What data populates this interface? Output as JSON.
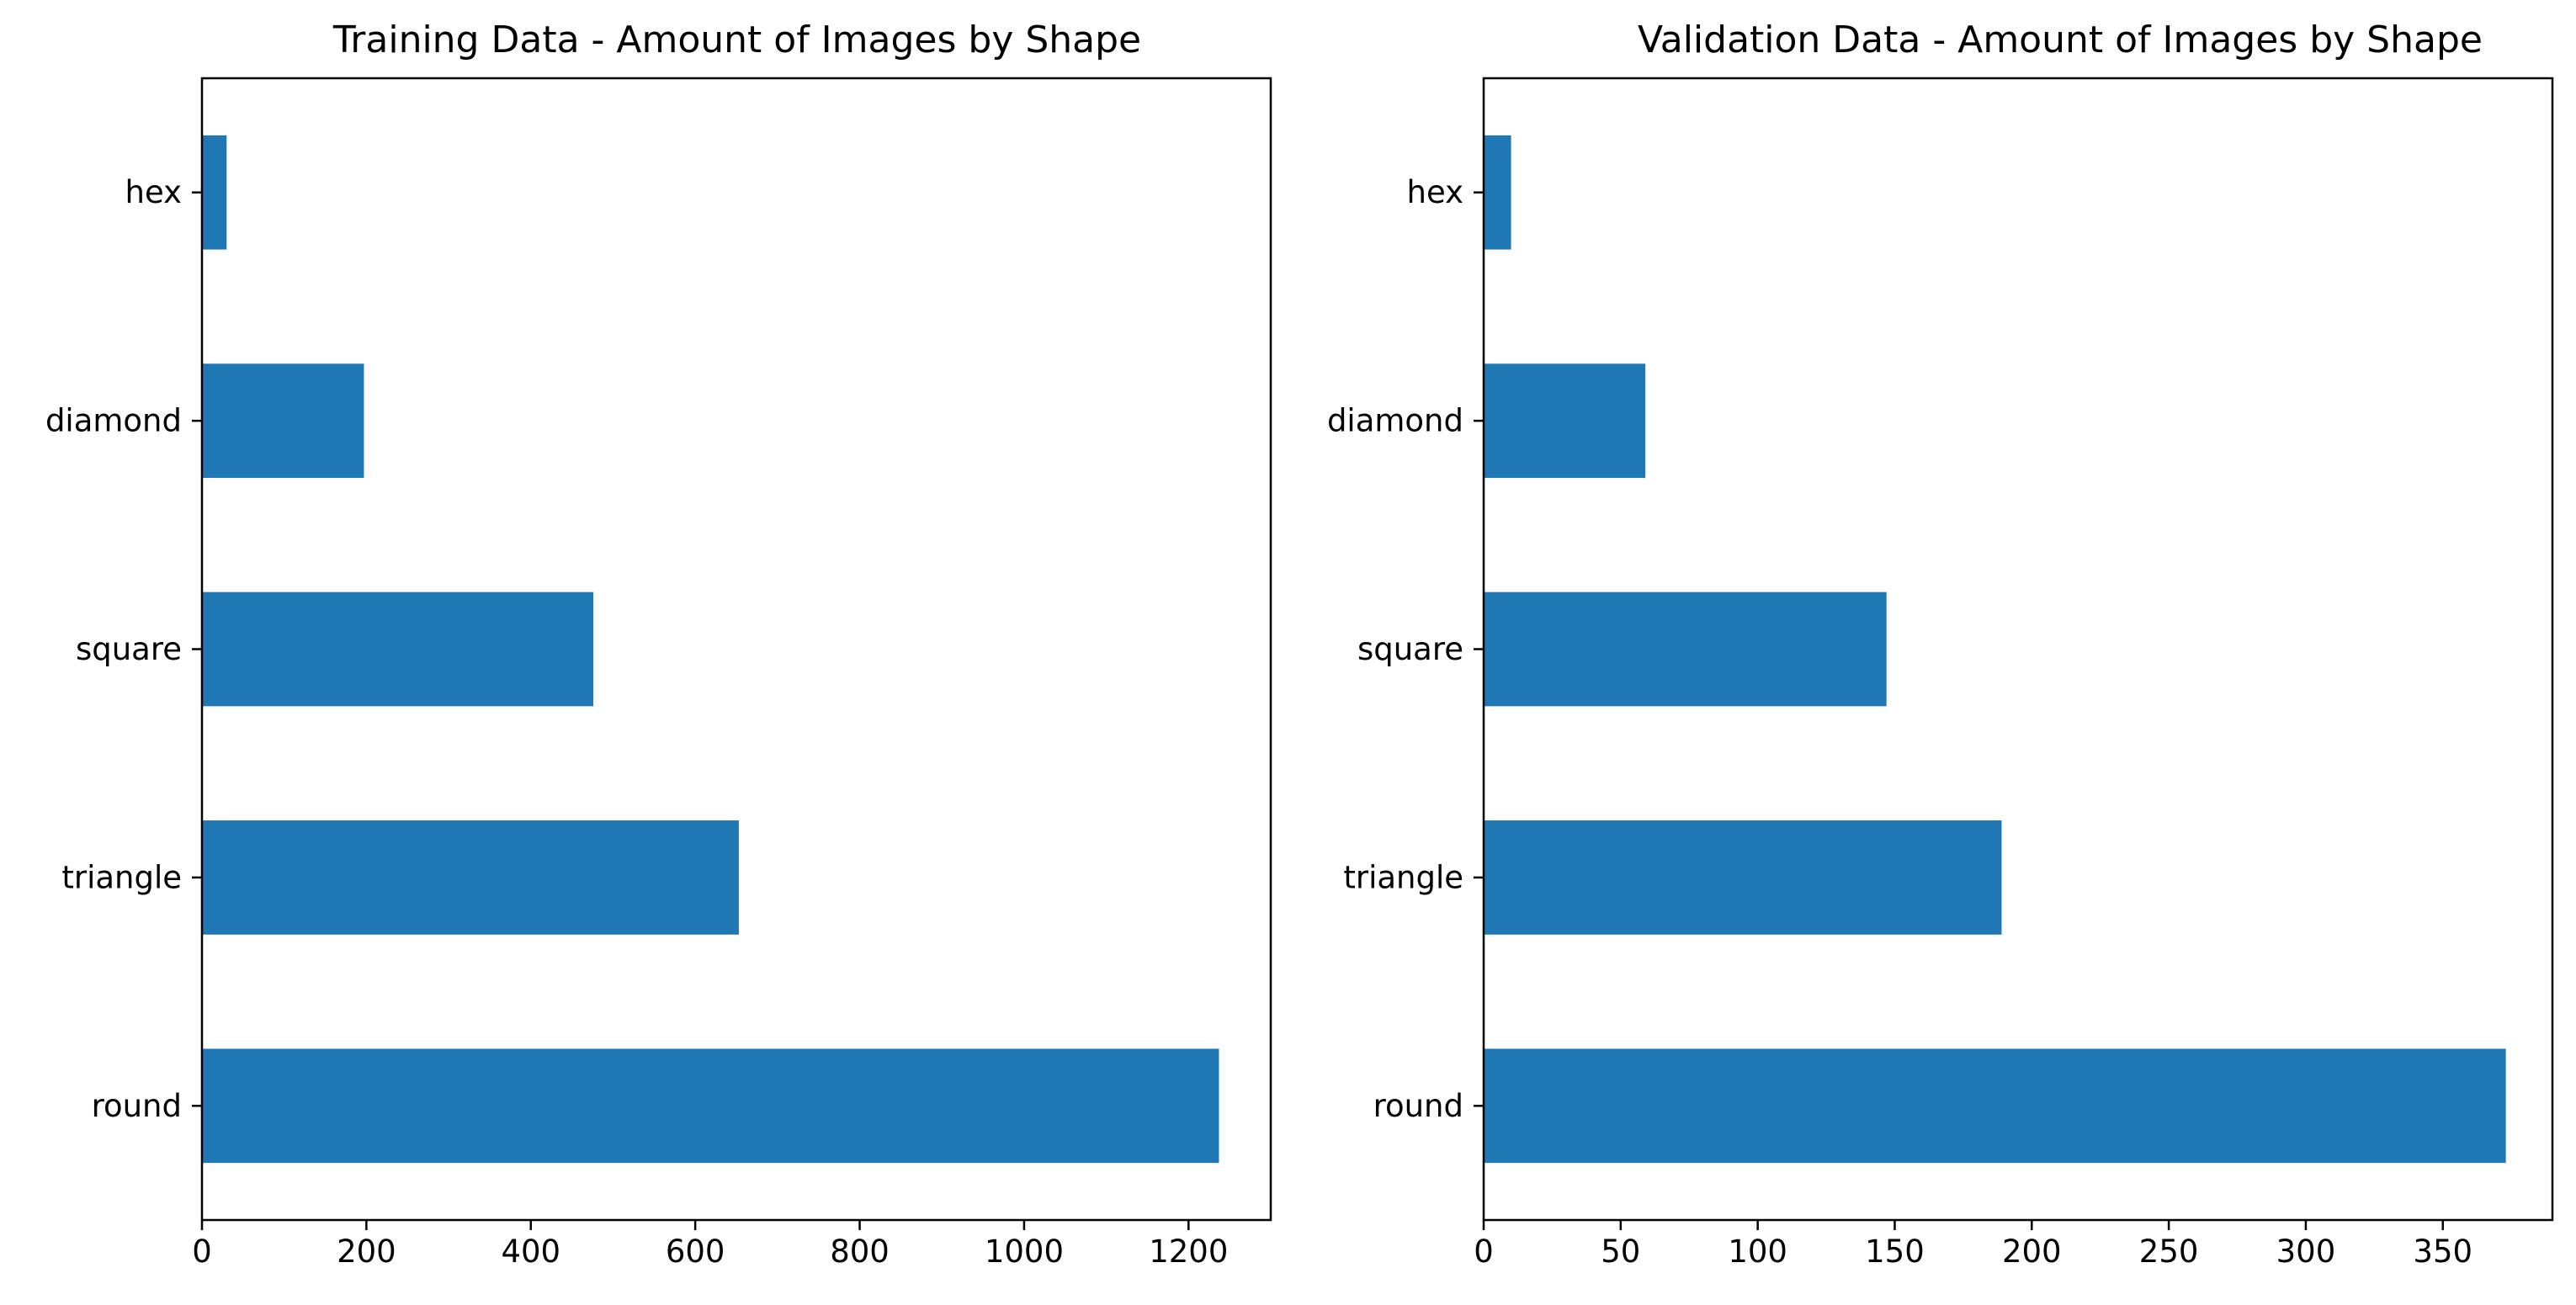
{
  "chart_data": [
    {
      "type": "bar",
      "orientation": "horizontal",
      "title": "Training Data - Amount of Images by Shape",
      "categories": [
        "round",
        "triangle",
        "square",
        "diamond",
        "hex"
      ],
      "values": [
        1237,
        653,
        476,
        197,
        30
      ],
      "xlim": [
        0,
        1300
      ],
      "xticks": [
        0,
        200,
        400,
        600,
        800,
        1000,
        1200
      ],
      "xlabel": "",
      "ylabel": "",
      "grid": false,
      "color": "#1f77b4"
    },
    {
      "type": "bar",
      "orientation": "horizontal",
      "title": "Validation Data - Amount of Images by Shape",
      "categories": [
        "round",
        "triangle",
        "square",
        "diamond",
        "hex"
      ],
      "values": [
        373,
        189,
        147,
        59,
        10
      ],
      "xlim": [
        0,
        390
      ],
      "xticks": [
        0,
        50,
        100,
        150,
        200,
        250,
        300,
        350
      ],
      "xlabel": "",
      "ylabel": "",
      "grid": false,
      "color": "#1f77b4"
    }
  ]
}
